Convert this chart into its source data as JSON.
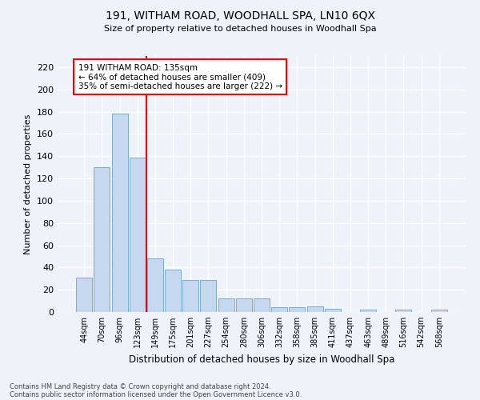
{
  "title1": "191, WITHAM ROAD, WOODHALL SPA, LN10 6QX",
  "title2": "Size of property relative to detached houses in Woodhall Spa",
  "xlabel": "Distribution of detached houses by size in Woodhall Spa",
  "ylabel": "Number of detached properties",
  "footer1": "Contains HM Land Registry data © Crown copyright and database right 2024.",
  "footer2": "Contains public sector information licensed under the Open Government Licence v3.0.",
  "annotation_line1": "191 WITHAM ROAD: 135sqm",
  "annotation_line2": "← 64% of detached houses are smaller (409)",
  "annotation_line3": "35% of semi-detached houses are larger (222) →",
  "bar_labels": [
    "44sqm",
    "70sqm",
    "96sqm",
    "123sqm",
    "149sqm",
    "175sqm",
    "201sqm",
    "227sqm",
    "254sqm",
    "280sqm",
    "306sqm",
    "332sqm",
    "358sqm",
    "385sqm",
    "411sqm",
    "437sqm",
    "463sqm",
    "489sqm",
    "516sqm",
    "542sqm",
    "568sqm"
  ],
  "bar_values": [
    31,
    130,
    178,
    139,
    48,
    38,
    29,
    29,
    12,
    12,
    12,
    4,
    4,
    5,
    3,
    0,
    2,
    0,
    2,
    0,
    2
  ],
  "bar_color": "#c5d8f0",
  "bar_edge_color": "#7aadd4",
  "vline_color": "red",
  "vline_x": 3.5,
  "annotation_box_color": "white",
  "annotation_box_edge": "red",
  "ylim": [
    0,
    230
  ],
  "yticks": [
    0,
    20,
    40,
    60,
    80,
    100,
    120,
    140,
    160,
    180,
    200,
    220
  ],
  "background_color": "#eef2f9",
  "grid_color": "white"
}
